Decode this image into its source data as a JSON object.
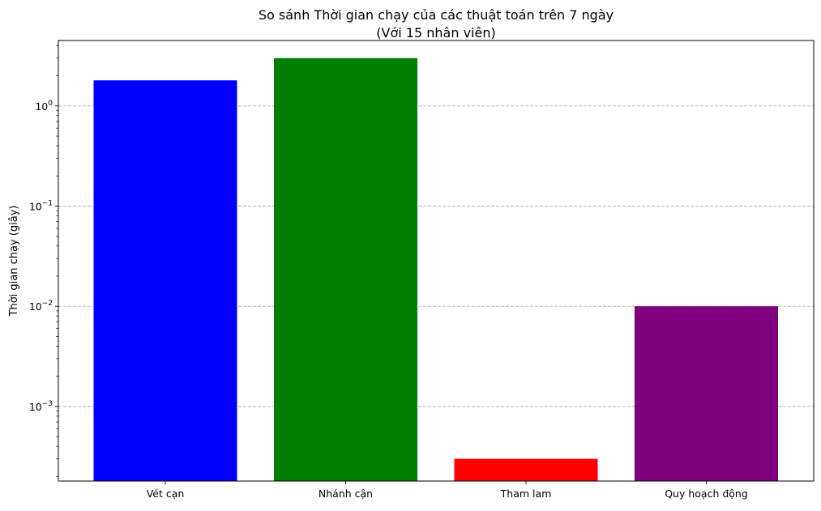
{
  "chart_data": {
    "type": "bar",
    "title": "So sánh Thời gian chạy của các thuật toán trên 7 ngày",
    "subtitle": "(Với 15 nhân viên)",
    "xlabel": "",
    "ylabel": "Thời gian chạy (giây)",
    "y_scale": "log",
    "ylim": [
      0.00018,
      4.5
    ],
    "grid": "y-major-dashed",
    "categories": [
      "Vét cạn",
      "Nhánh cận",
      "Tham lam",
      "Quy hoạch động"
    ],
    "values": [
      1.8,
      3.0,
      0.0003,
      0.01
    ],
    "colors": [
      "#0000ff",
      "#008000",
      "#ff0000",
      "#800080"
    ],
    "y_ticks": [
      {
        "base": "10",
        "exp": "−3",
        "value": 0.001
      },
      {
        "base": "10",
        "exp": "−2",
        "value": 0.01
      },
      {
        "base": "10",
        "exp": "−1",
        "value": 0.1
      },
      {
        "base": "10",
        "exp": "0",
        "value": 1
      }
    ]
  }
}
